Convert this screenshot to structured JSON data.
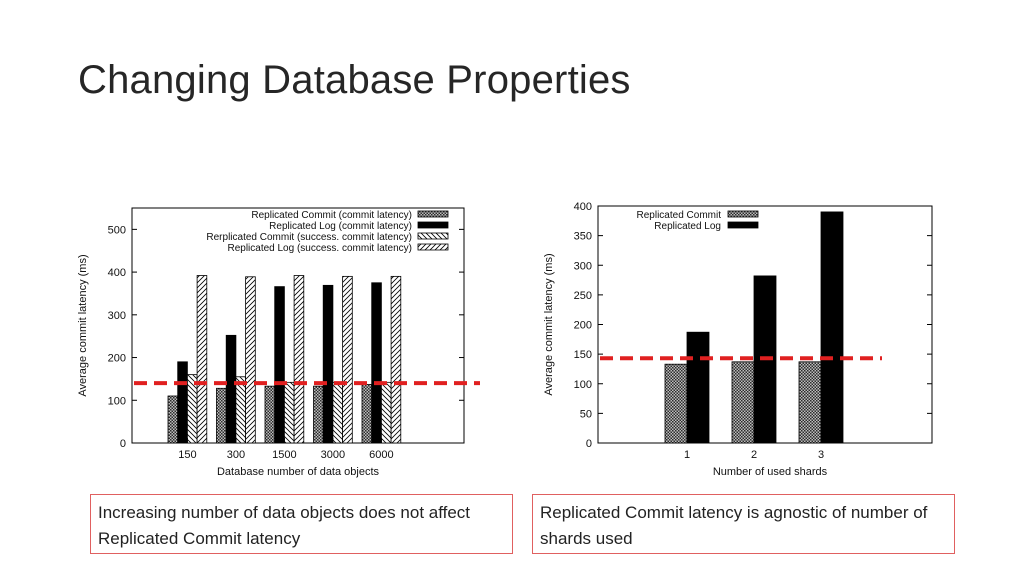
{
  "slide": {
    "title": "Changing Database Properties"
  },
  "captions": {
    "left": "Increasing number of data objects does not affect Replicated Commit latency",
    "right": "Replicated Commit latency is agnostic of number of shards used"
  },
  "colors": {
    "reference_line": "#e02020",
    "caption_border": "#e06060",
    "solid_bar": "#000000"
  },
  "chart_data": [
    {
      "type": "bar",
      "xlabel": "Database number of data objects",
      "ylabel": "Average commit latency (ms)",
      "categories": [
        "150",
        "300",
        "1500",
        "3000",
        "6000"
      ],
      "ylim": [
        0,
        550
      ],
      "yticks": [
        0,
        100,
        200,
        300,
        400,
        500
      ],
      "legend_position": "top-right",
      "series": [
        {
          "name": "Replicated Commit (commit latency)",
          "pattern": "crosshatch",
          "values": [
            110,
            128,
            133,
            133,
            137
          ]
        },
        {
          "name": "Replicated Log (commit latency)",
          "pattern": "solid",
          "values": [
            190,
            252,
            366,
            369,
            375
          ]
        },
        {
          "name": "Rerplicated Commit (success. commit latency)",
          "pattern": "backslash",
          "values": [
            160,
            155,
            142,
            142,
            142
          ]
        },
        {
          "name": "Replicated Log (success. commit latency)",
          "pattern": "slash",
          "values": [
            392,
            389,
            392,
            390,
            390
          ]
        }
      ],
      "reference_line": 140
    },
    {
      "type": "bar",
      "xlabel": "Number of used shards",
      "ylabel": "Average commit latency (ms)",
      "categories": [
        "1",
        "2",
        "3"
      ],
      "ylim": [
        0,
        400
      ],
      "yticks": [
        0,
        50,
        100,
        150,
        200,
        250,
        300,
        350,
        400
      ],
      "legend_position": "top-left",
      "series": [
        {
          "name": "Replicated Commit",
          "pattern": "crosshatch",
          "values": [
            133,
            137,
            137
          ]
        },
        {
          "name": "Replicated Log",
          "pattern": "solid",
          "values": [
            187,
            282,
            390
          ]
        }
      ],
      "reference_line": 143
    }
  ]
}
